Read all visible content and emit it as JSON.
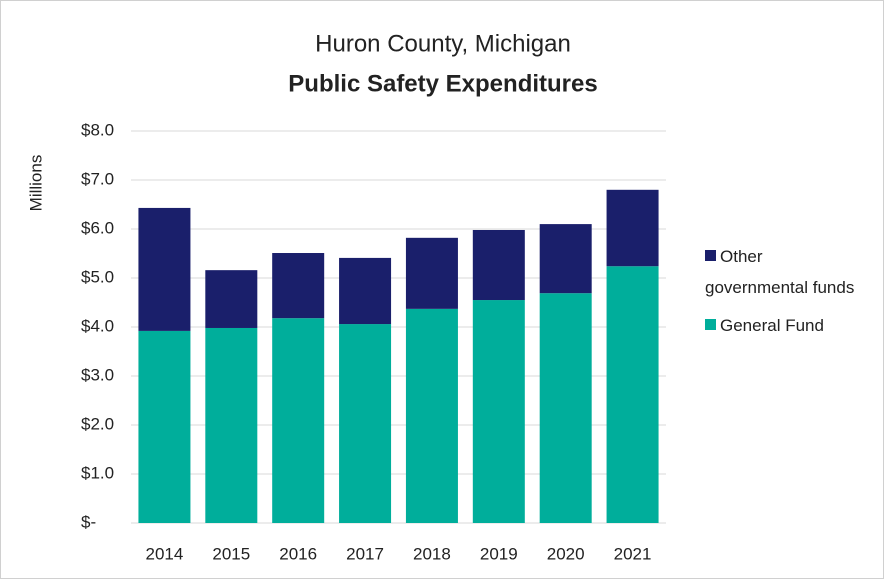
{
  "chart_data": {
    "type": "stacked_bar",
    "title": "Huron County, Michigan",
    "subtitle": "Public Safety Expenditures",
    "y_label": "Millions",
    "categories": [
      "2014",
      "2015",
      "2016",
      "2017",
      "2018",
      "2019",
      "2020",
      "2021"
    ],
    "series": [
      {
        "name": "General Fund",
        "color": "#00ae9b",
        "values": [
          3.92,
          3.98,
          4.18,
          4.06,
          4.37,
          4.55,
          4.69,
          5.24
        ]
      },
      {
        "name": "Other governmental funds",
        "color": "#1a1f6b",
        "values": [
          2.51,
          1.18,
          1.33,
          1.35,
          1.45,
          1.43,
          1.41,
          1.56
        ]
      }
    ],
    "ylim": [
      0,
      8
    ],
    "yticks": [
      {
        "value": 0,
        "label": "$-"
      },
      {
        "value": 1,
        "label": "$1.0"
      },
      {
        "value": 2,
        "label": "$2.0"
      },
      {
        "value": 3,
        "label": "$3.0"
      },
      {
        "value": 4,
        "label": "$4.0"
      },
      {
        "value": 5,
        "label": "$5.0"
      },
      {
        "value": 6,
        "label": "$6.0"
      },
      {
        "value": 7,
        "label": "$7.0"
      },
      {
        "value": 8,
        "label": "$8.0"
      }
    ],
    "grid": true,
    "legend": "right"
  }
}
